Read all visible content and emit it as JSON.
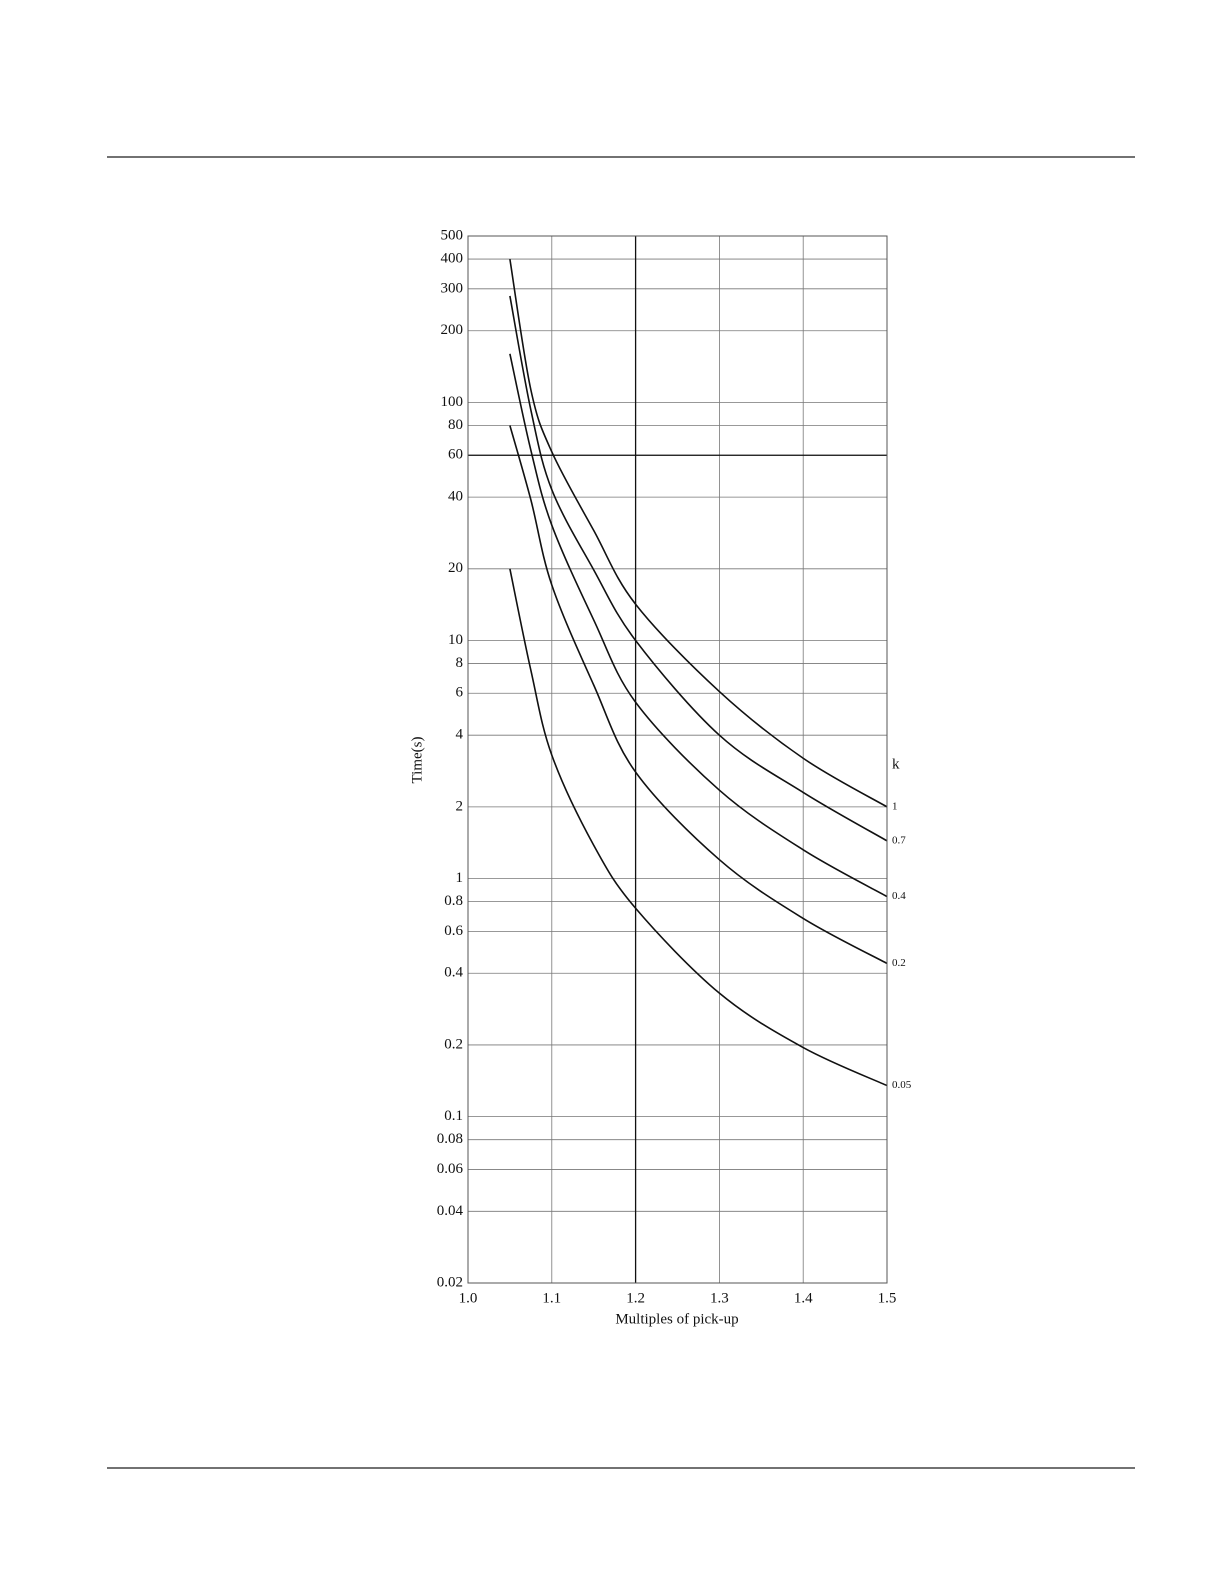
{
  "chart_data": {
    "type": "line",
    "x_label": "Multiples of pick-up",
    "y_label": "Time(s)",
    "legend_title": "k",
    "log_y": true,
    "grid": true,
    "color": "#111111",
    "reference_lines": {
      "x": [
        1.2
      ],
      "y": [
        60
      ]
    },
    "x": [
      1.05,
      1.075,
      1.1,
      1.15,
      1.2,
      1.3,
      1.4,
      1.5
    ],
    "series": [
      {
        "name": "1",
        "values": [
          400,
          113,
          62,
          29,
          14.2,
          6.1,
          3.2,
          2.0
        ]
      },
      {
        "name": "0.7",
        "values": [
          280,
          93,
          43,
          19.8,
          10,
          4.0,
          2.3,
          1.44
        ]
      },
      {
        "name": "0.4",
        "values": [
          160,
          63,
          30.5,
          12.2,
          5.5,
          2.35,
          1.32,
          0.84
        ]
      },
      {
        "name": "0.2",
        "values": [
          80,
          39,
          17.1,
          6.5,
          2.8,
          1.2,
          0.68,
          0.44
        ]
      },
      {
        "name": "0.05",
        "values": [
          20,
          7.5,
          3.3,
          1.38,
          0.75,
          0.33,
          0.195,
          0.135
        ]
      }
    ],
    "xlim": [
      1.0,
      1.5
    ],
    "xticks": [
      {
        "value": 1.0,
        "label": "1.0"
      },
      1.1,
      1.2,
      1.3,
      1.4,
      {
        "value": 1.5,
        "label": "1.5"
      }
    ],
    "ylim": [
      0.02,
      500
    ],
    "yticks": [
      0.02,
      0.04,
      0.06,
      0.08,
      0.1,
      0.2,
      0.4,
      0.6,
      0.8,
      1,
      2,
      4,
      6,
      8,
      10,
      20,
      40,
      60,
      80,
      100,
      200,
      300,
      400,
      500
    ]
  }
}
